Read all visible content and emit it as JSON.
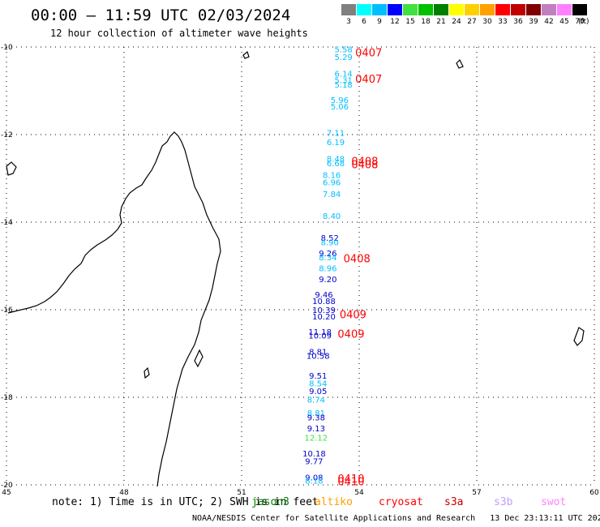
{
  "title": "00:00 — 11:59 UTC 02/03/2024",
  "subtitle": "12 hour collection of altimeter wave heights",
  "legend": {
    "unit": "(ft)",
    "items": [
      {
        "label": "3",
        "color": "#808080"
      },
      {
        "label": "6",
        "color": "#00ffff"
      },
      {
        "label": "9",
        "color": "#00bfff"
      },
      {
        "label": "12",
        "color": "#0000ff"
      },
      {
        "label": "15",
        "color": "#40e040"
      },
      {
        "label": "18",
        "color": "#00c000"
      },
      {
        "label": "21",
        "color": "#008000"
      },
      {
        "label": "24",
        "color": "#ffff00"
      },
      {
        "label": "27",
        "color": "#ffd000"
      },
      {
        "label": "30",
        "color": "#ffa000"
      },
      {
        "label": "33",
        "color": "#ff0000"
      },
      {
        "label": "36",
        "color": "#c00000"
      },
      {
        "label": "39",
        "color": "#800000"
      },
      {
        "label": "42",
        "color": "#c080c0"
      },
      {
        "label": "45",
        "color": "#ff80ff"
      },
      {
        "label": "70",
        "color": "#000000"
      }
    ]
  },
  "axes": {
    "lon_ticks": [
      "45",
      "48",
      "51",
      "54",
      "57",
      "60"
    ],
    "lat_ticks": [
      "-10",
      "-12",
      "-14",
      "-16",
      "-18",
      "-20"
    ]
  },
  "observations": [
    {
      "v": "5.58",
      "lon": 53.6,
      "lat": -10.05,
      "c": "#00bfff"
    },
    {
      "v": "5.29",
      "lon": 53.6,
      "lat": -10.22,
      "c": "#00bfff"
    },
    {
      "v": "6.14",
      "lon": 53.6,
      "lat": -10.6,
      "c": "#00bfff"
    },
    {
      "v": "5.31",
      "lon": 53.6,
      "lat": -10.75,
      "c": "#00bfff"
    },
    {
      "v": "5.18",
      "lon": 53.6,
      "lat": -10.85,
      "c": "#00bfff"
    },
    {
      "v": "5.96",
      "lon": 53.5,
      "lat": -11.2,
      "c": "#00bfff"
    },
    {
      "v": "5.06",
      "lon": 53.5,
      "lat": -11.35,
      "c": "#00bfff"
    },
    {
      "v": "7.11",
      "lon": 53.4,
      "lat": -11.95,
      "c": "#00bfff"
    },
    {
      "v": "6.19",
      "lon": 53.4,
      "lat": -12.17,
      "c": "#00bfff"
    },
    {
      "v": "8.48",
      "lon": 53.4,
      "lat": -12.55,
      "c": "#00bfff"
    },
    {
      "v": "6.68",
      "lon": 53.4,
      "lat": -12.65,
      "c": "#00bfff"
    },
    {
      "v": "8.16",
      "lon": 53.3,
      "lat": -12.92,
      "c": "#00bfff"
    },
    {
      "v": "6.96",
      "lon": 53.3,
      "lat": -13.08,
      "c": "#00bfff"
    },
    {
      "v": "7.84",
      "lon": 53.3,
      "lat": -13.35,
      "c": "#00bfff"
    },
    {
      "v": "8.40",
      "lon": 53.3,
      "lat": -13.85,
      "c": "#00bfff"
    },
    {
      "v": "8.52",
      "lon": 53.25,
      "lat": -14.35,
      "c": "#0000cc"
    },
    {
      "v": "8.90",
      "lon": 53.25,
      "lat": -14.45,
      "c": "#00bfff"
    },
    {
      "v": "9.26",
      "lon": 53.2,
      "lat": -14.7,
      "c": "#0000cc"
    },
    {
      "v": "8.34",
      "lon": 53.2,
      "lat": -14.8,
      "c": "#00bfff"
    },
    {
      "v": "8.96",
      "lon": 53.2,
      "lat": -15.05,
      "c": "#00bfff"
    },
    {
      "v": "9.20",
      "lon": 53.2,
      "lat": -15.3,
      "c": "#0000cc"
    },
    {
      "v": "9.46",
      "lon": 53.1,
      "lat": -15.65,
      "c": "#0000cc"
    },
    {
      "v": "10.88",
      "lon": 53.1,
      "lat": -15.8,
      "c": "#0000cc"
    },
    {
      "v": "10.39",
      "lon": 53.1,
      "lat": -16.0,
      "c": "#0000cc"
    },
    {
      "v": "10.20",
      "lon": 53.1,
      "lat": -16.15,
      "c": "#0000cc"
    },
    {
      "v": "11.18",
      "lon": 53.0,
      "lat": -16.5,
      "c": "#0000cc"
    },
    {
      "v": "10.09",
      "lon": 53.0,
      "lat": -16.58,
      "c": "#0000cc"
    },
    {
      "v": "8.81",
      "lon": 52.95,
      "lat": -16.95,
      "c": "#0000cc"
    },
    {
      "v": "10.58",
      "lon": 52.95,
      "lat": -17.05,
      "c": "#0000cc"
    },
    {
      "v": "9.51",
      "lon": 52.95,
      "lat": -17.5,
      "c": "#0000cc"
    },
    {
      "v": "8.54",
      "lon": 52.95,
      "lat": -17.68,
      "c": "#00bfff"
    },
    {
      "v": "9.05",
      "lon": 52.95,
      "lat": -17.85,
      "c": "#0000cc"
    },
    {
      "v": "8.74",
      "lon": 52.9,
      "lat": -18.05,
      "c": "#00bfff"
    },
    {
      "v": "8.81",
      "lon": 52.9,
      "lat": -18.35,
      "c": "#00bfff"
    },
    {
      "v": "9.38",
      "lon": 52.9,
      "lat": -18.45,
      "c": "#0000cc"
    },
    {
      "v": "9.13",
      "lon": 52.9,
      "lat": -18.7,
      "c": "#0000cc"
    },
    {
      "v": "12.12",
      "lon": 52.9,
      "lat": -18.92,
      "c": "#40e040"
    },
    {
      "v": "10.18",
      "lon": 52.85,
      "lat": -19.28,
      "c": "#0000cc"
    },
    {
      "v": "9.77",
      "lon": 52.85,
      "lat": -19.45,
      "c": "#0000cc"
    },
    {
      "v": "9.08",
      "lon": 52.85,
      "lat": -19.82,
      "c": "#0000cc"
    },
    {
      "v": "8.18",
      "lon": 52.85,
      "lat": -19.9,
      "c": "#00bfff"
    }
  ],
  "time_tags": [
    {
      "t": "0407",
      "lon": 53.9,
      "lat": -10.12
    },
    {
      "t": "0407",
      "lon": 53.9,
      "lat": -10.72
    },
    {
      "t": "0408",
      "lon": 53.8,
      "lat": -12.6
    },
    {
      "t": "0408",
      "lon": 53.8,
      "lat": -12.68
    },
    {
      "t": "0408",
      "lon": 53.6,
      "lat": -14.82
    },
    {
      "t": "0409",
      "lon": 53.5,
      "lat": -16.1
    },
    {
      "t": "0409",
      "lon": 53.45,
      "lat": -16.55
    },
    {
      "t": "0410",
      "lon": 53.45,
      "lat": -19.85
    },
    {
      "t": "0410",
      "lon": 53.45,
      "lat": -19.92
    }
  ],
  "footer": {
    "note": "note: 1) Time is in UTC; 2) SWH is in feet",
    "satellites": [
      {
        "name": "jason3",
        "color": "#008000"
      },
      {
        "name": "altiko",
        "color": "#ffa000"
      },
      {
        "name": "cryosat",
        "color": "#ff0000"
      },
      {
        "name": "s3a",
        "color": "#c00000"
      },
      {
        "name": "s3b",
        "color": "#c0a0ff"
      },
      {
        "name": "swot",
        "color": "#ff80ff"
      }
    ],
    "credit": "NOAA/NESDIS Center for Satellite Applications and Research   13 Dec 23:13:11 UTC 2024"
  }
}
